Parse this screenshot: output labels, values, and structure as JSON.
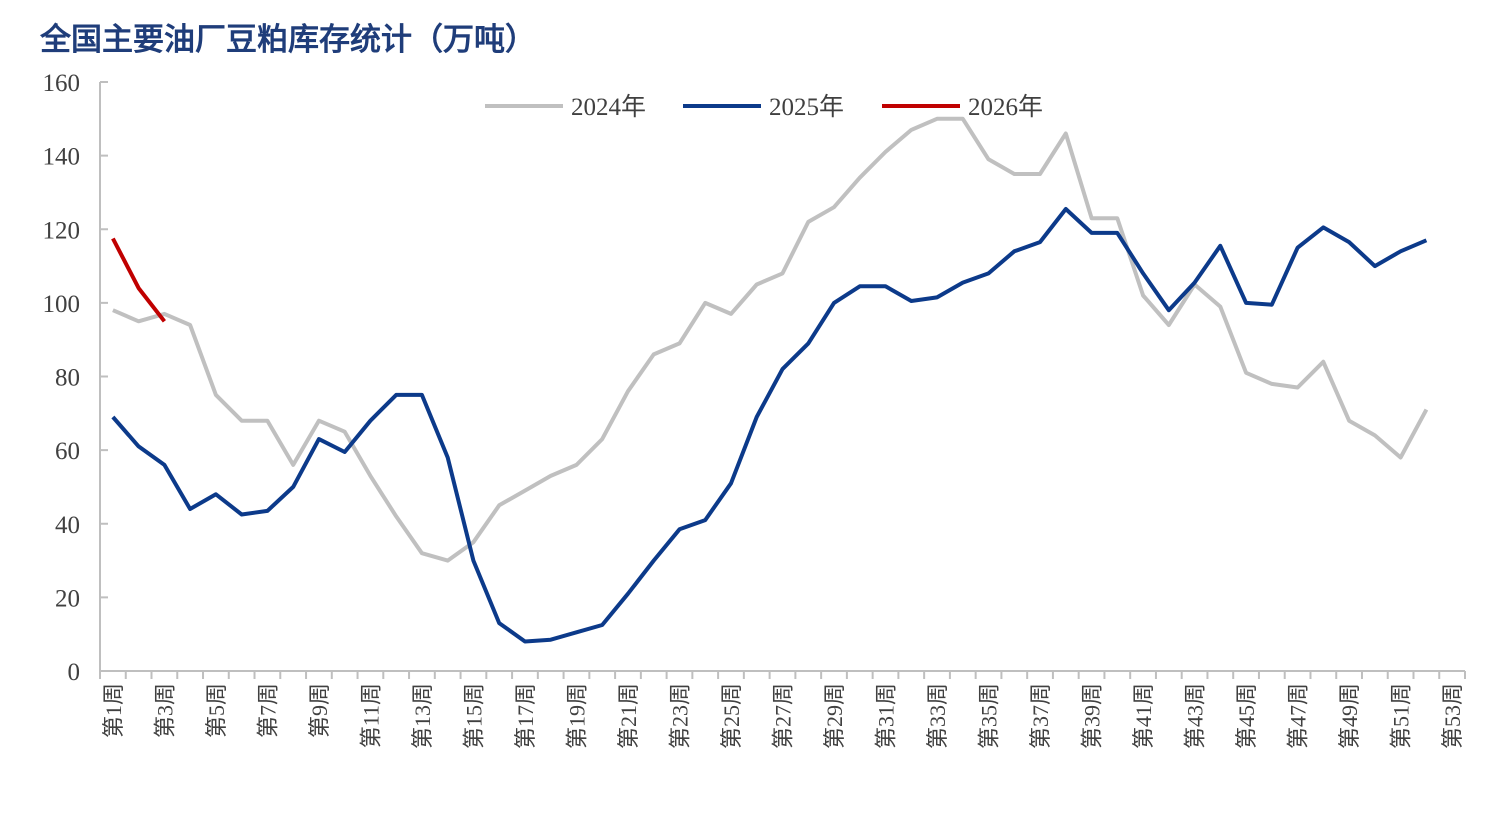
{
  "chart_data": {
    "type": "line",
    "title": "全国主要油厂豆粕库存统计（万吨）",
    "categories": [
      "第1周",
      null,
      "第3周",
      null,
      "第5周",
      null,
      "第7周",
      null,
      "第9周",
      null,
      "第11周",
      null,
      "第13周",
      null,
      "第15周",
      null,
      "第17周",
      null,
      "第19周",
      null,
      "第21周",
      null,
      "第23周",
      null,
      "第25周",
      null,
      "第27周",
      null,
      "第29周",
      null,
      "第31周",
      null,
      "第33周",
      null,
      "第35周",
      null,
      "第37周",
      null,
      "第39周",
      null,
      "第41周",
      null,
      "第43周",
      null,
      "第45周",
      null,
      "第47周",
      null,
      "第49周",
      null,
      "第51周",
      null,
      "第53周"
    ],
    "series": [
      {
        "name": "2024年",
        "color": "#c0c0c0",
        "values": [
          98,
          95,
          97,
          94,
          75,
          68,
          68,
          56,
          68,
          65,
          53,
          42,
          32,
          30,
          35,
          45,
          49,
          53,
          56,
          63,
          76,
          86,
          89,
          100,
          97,
          105,
          108,
          122,
          126,
          134,
          141,
          147,
          150,
          150,
          139,
          135,
          135,
          146,
          123,
          123,
          102,
          94,
          105,
          99,
          81,
          78,
          77,
          84,
          68,
          64,
          58,
          71,
          null
        ]
      },
      {
        "name": "2025年",
        "color": "#0c3a8a",
        "values": [
          69,
          61,
          56,
          44,
          48,
          42.5,
          43.5,
          50,
          63,
          59.5,
          68,
          75,
          75,
          58,
          30,
          13,
          8,
          8.5,
          10.5,
          12.5,
          21,
          30,
          38.5,
          41,
          51,
          69,
          82,
          89,
          100,
          104.5,
          104.5,
          100.5,
          101.5,
          105.5,
          108,
          114,
          116.5,
          125.5,
          119,
          119,
          108,
          98,
          105.5,
          115.5,
          100,
          99.5,
          115,
          120.5,
          116.5,
          110,
          114,
          117,
          null
        ]
      },
      {
        "name": "2026年",
        "color": "#c00000",
        "values": [
          117.5,
          104,
          95,
          null,
          null,
          null,
          null,
          null,
          null,
          null,
          null,
          null,
          null,
          null,
          null,
          null,
          null,
          null,
          null,
          null,
          null,
          null,
          null,
          null,
          null,
          null,
          null,
          null,
          null,
          null,
          null,
          null,
          null,
          null,
          null,
          null,
          null,
          null,
          null,
          null,
          null,
          null,
          null,
          null,
          null,
          null,
          null,
          null,
          null,
          null,
          null,
          null,
          null
        ]
      }
    ],
    "ylim": [
      0,
      160
    ],
    "yticks": [
      0,
      20,
      40,
      60,
      80,
      100,
      120,
      140,
      160
    ],
    "grid": false,
    "legend": "top"
  }
}
